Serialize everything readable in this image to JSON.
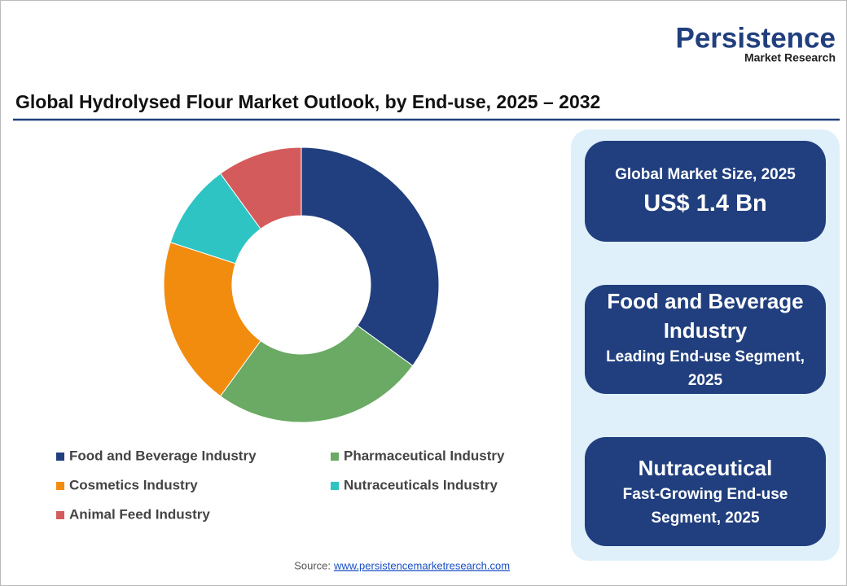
{
  "logo": {
    "name": "Persistence",
    "tagline": "Market Research"
  },
  "chart_data": {
    "type": "donut",
    "title": "Global Hydrolysed Flour Market Outlook, by End-use, 2025 – 2032",
    "categories": [
      "Food and Beverage Industry",
      "Pharmaceutical Industry",
      "Cosmetics Industry",
      "Nutraceuticals Industry",
      "Animal Feed Industry"
    ],
    "values": [
      35,
      25,
      20,
      10,
      10
    ],
    "colors": [
      "#213f7e",
      "#6aaa64",
      "#f28c0f",
      "#2ec4c4",
      "#d45b5b"
    ]
  },
  "cards": [
    {
      "title": "Global Market Size, 2025",
      "value": "US$ 1.4 Bn"
    },
    {
      "title": "Food and Beverage Industry",
      "subtitle": "Leading End-use Segment, 2025"
    },
    {
      "title": "Nutraceutical",
      "subtitle": "Fast-Growing End-use Segment, 2025"
    }
  ],
  "source": {
    "label": "Source:",
    "link": "www.persistencemarketresearch.com"
  }
}
